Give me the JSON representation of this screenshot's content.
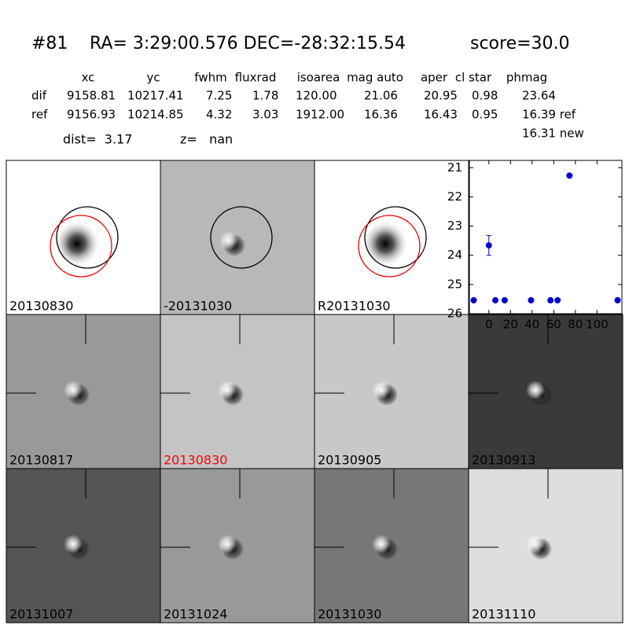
{
  "header": {
    "id": "#81",
    "coords": "RA= 3:29:00.576 DEC=-28:32:15.54",
    "score": "score=30.0"
  },
  "table": {
    "columns": [
      "xc",
      "yc",
      "fwhm",
      "fluxrad",
      "isoarea",
      "mag auto",
      "aper",
      "cl star",
      "phmag"
    ],
    "rows": [
      [
        "dif",
        "9158.81",
        "10217.41",
        "7.25",
        "1.78",
        "120.00",
        "21.06",
        "20.95",
        "0.98",
        "23.64"
      ],
      [
        "ref",
        "9156.93",
        "10214.85",
        "4.32",
        "3.03",
        "1912.00",
        "16.36",
        "16.43",
        "0.95",
        "16.39 ref"
      ]
    ],
    "extra": "16.31 new"
  },
  "dist": "dist=  3.17",
  "z": "z=   nan",
  "stamps": [
    "20130830",
    "-20131030",
    "R20131030",
    "20130817",
    "20130830",
    "20130905",
    "20130913",
    "20131007",
    "20131024",
    "20131030",
    "20131110"
  ],
  "plot": {
    "type": "scatter",
    "color": "#0000cc",
    "x": [
      -14,
      0,
      6,
      14.6,
      39,
      57,
      63.5,
      74.5,
      119
    ],
    "y": [
      25.54,
      23.66,
      25.54,
      25.54,
      25.54,
      25.54,
      25.54,
      21.27,
      25.54
    ],
    "yerr": [
      null,
      0.34,
      null,
      null,
      null,
      null,
      null,
      null,
      null
    ],
    "xlim": [
      -18,
      123
    ],
    "ylim": [
      20.75,
      26
    ],
    "y_inverted": true,
    "xticks": [
      0,
      20,
      40,
      60,
      80,
      100
    ],
    "yticks": [
      21,
      22,
      23,
      24,
      25,
      26
    ]
  }
}
